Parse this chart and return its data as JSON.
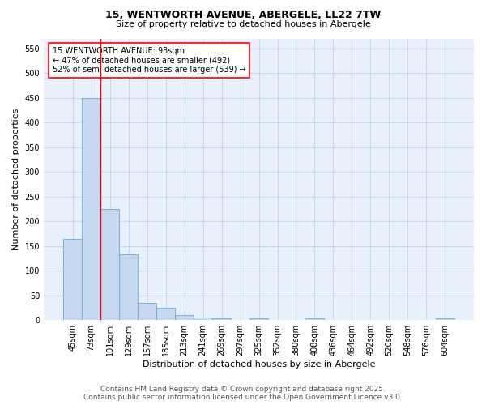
{
  "title": "15, WENTWORTH AVENUE, ABERGELE, LL22 7TW",
  "subtitle": "Size of property relative to detached houses in Abergele",
  "xlabel": "Distribution of detached houses by size in Abergele",
  "ylabel": "Number of detached properties",
  "bar_color": "#c5d8f0",
  "bar_edge_color": "#6aaad4",
  "grid_color": "#c8d8ee",
  "background_color": "#e8f0fc",
  "categories": [
    "45sqm",
    "73sqm",
    "101sqm",
    "129sqm",
    "157sqm",
    "185sqm",
    "213sqm",
    "241sqm",
    "269sqm",
    "297sqm",
    "325sqm",
    "352sqm",
    "380sqm",
    "408sqm",
    "436sqm",
    "464sqm",
    "492sqm",
    "520sqm",
    "548sqm",
    "576sqm",
    "604sqm"
  ],
  "values": [
    165,
    450,
    225,
    133,
    35,
    25,
    10,
    5,
    3,
    0,
    3,
    0,
    0,
    3,
    0,
    0,
    0,
    0,
    0,
    0,
    3
  ],
  "ylim": [
    0,
    570
  ],
  "yticks": [
    0,
    50,
    100,
    150,
    200,
    250,
    300,
    350,
    400,
    450,
    500,
    550
  ],
  "red_line_index": 2,
  "annotation_line1": "15 WENTWORTH AVENUE: 93sqm",
  "annotation_line2": "← 47% of detached houses are smaller (492)",
  "annotation_line3": "52% of semi-detached houses are larger (539) →",
  "footer_line1": "Contains HM Land Registry data © Crown copyright and database right 2025.",
  "footer_line2": "Contains public sector information licensed under the Open Government Licence v3.0.",
  "title_fontsize": 9,
  "subtitle_fontsize": 8,
  "axis_label_fontsize": 8,
  "tick_fontsize": 7,
  "annotation_fontsize": 7,
  "footer_fontsize": 6.5
}
